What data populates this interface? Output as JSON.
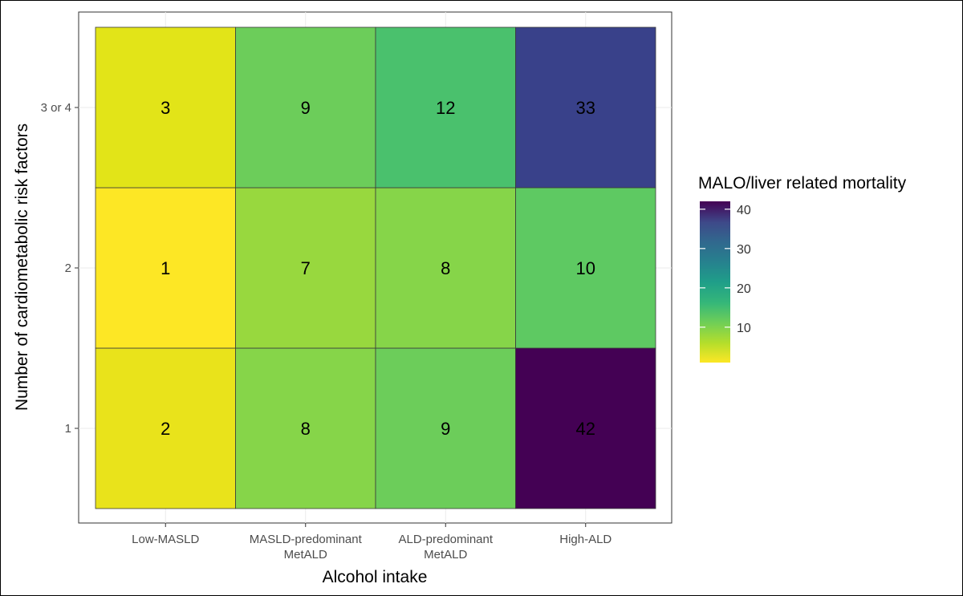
{
  "chart_data": {
    "type": "heatmap",
    "xlabel": "Alcohol intake",
    "ylabel": "Number of cardiometabolic risk factors",
    "x_categories": [
      [
        "Low-MASLD"
      ],
      [
        "MASLD-predominant",
        "MetALD"
      ],
      [
        "ALD-predominant",
        "MetALD"
      ],
      [
        "High-ALD"
      ]
    ],
    "y_categories": [
      "1",
      "2",
      "3 or 4"
    ],
    "values": [
      [
        2,
        8,
        9,
        42
      ],
      [
        1,
        7,
        8,
        10
      ],
      [
        3,
        9,
        12,
        33
      ]
    ],
    "cell_colors": [
      [
        "#e9e31b",
        "#86d549",
        "#6ccd5a",
        "#440154"
      ],
      [
        "#fde725",
        "#98d83e",
        "#86d549",
        "#5ec962"
      ],
      [
        "#e2e418",
        "#6ccd5a",
        "#4ac16d",
        "#39418a"
      ]
    ],
    "legend": {
      "title": "MALO/liver related mortality",
      "ticks": [
        10,
        20,
        30,
        40
      ],
      "min": 1,
      "max": 42,
      "colormap": "viridis (reversed: high = dark purple, low = yellow)"
    },
    "grid": true
  }
}
